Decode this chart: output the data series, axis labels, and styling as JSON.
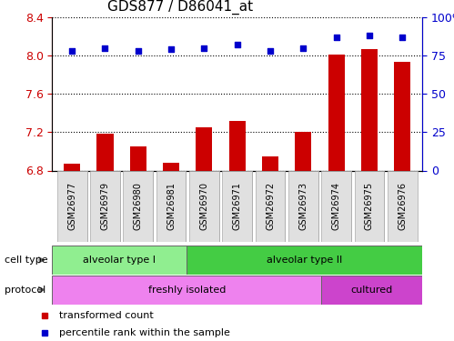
{
  "title": "GDS877 / D86041_at",
  "samples": [
    "GSM26977",
    "GSM26979",
    "GSM26980",
    "GSM26981",
    "GSM26970",
    "GSM26971",
    "GSM26972",
    "GSM26973",
    "GSM26974",
    "GSM26975",
    "GSM26976"
  ],
  "transformed_counts": [
    6.87,
    7.18,
    7.05,
    6.88,
    7.25,
    7.32,
    6.95,
    7.2,
    8.01,
    8.07,
    7.93
  ],
  "percentile_ranks": [
    78,
    80,
    78,
    79,
    80,
    82,
    78,
    80,
    87,
    88,
    87
  ],
  "ylim_left": [
    6.8,
    8.4
  ],
  "ylim_right": [
    0,
    100
  ],
  "yticks_left": [
    6.8,
    7.2,
    7.6,
    8.0,
    8.4
  ],
  "yticks_right": [
    0,
    25,
    50,
    75,
    100
  ],
  "bar_color": "#cc0000",
  "dot_color": "#0000cc",
  "cell_type_groups": [
    {
      "label": "alveolar type I",
      "start": 0,
      "end": 3,
      "color": "#90ee90"
    },
    {
      "label": "alveolar type II",
      "start": 4,
      "end": 10,
      "color": "#44cc44"
    }
  ],
  "protocol_groups": [
    {
      "label": "freshly isolated",
      "start": 0,
      "end": 7,
      "color": "#ee82ee"
    },
    {
      "label": "cultured",
      "start": 8,
      "end": 10,
      "color": "#cc44cc"
    }
  ],
  "legend_items": [
    {
      "label": "transformed count",
      "color": "#cc0000"
    },
    {
      "label": "percentile rank within the sample",
      "color": "#0000cc"
    }
  ],
  "tick_label_color_left": "#cc0000",
  "tick_label_color_right": "#0000cc"
}
